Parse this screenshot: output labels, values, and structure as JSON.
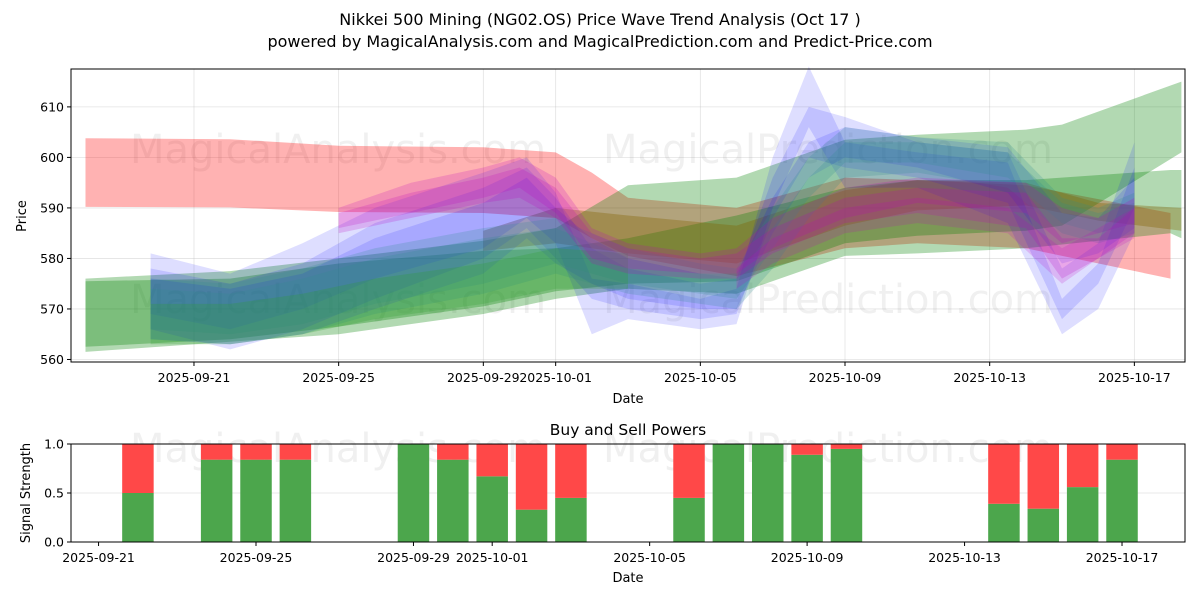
{
  "header": {
    "title": "Nikkei 500 Mining (NG02.OS) Price Wave Trend Analysis (Oct 17 )",
    "subtitle": "powered by MagicalAnalysis.com and MagicalPrediction.com and Predict-Price.com"
  },
  "watermarks": [
    "MagicalAnalysis.com",
    "MagicalPrediction.com"
  ],
  "chart_data": [
    {
      "type": "area",
      "title": "",
      "xlabel": "Date",
      "ylabel": "Price",
      "x_start": "2025-09-21",
      "x_unit": "days offset from 2025-09-21",
      "xlim": [
        -3.4,
        27.4
      ],
      "ylim": [
        559.5,
        617.5
      ],
      "xticks": [
        {
          "offset": 0,
          "label": "2025-09-21"
        },
        {
          "offset": 4,
          "label": "2025-09-25"
        },
        {
          "offset": 8,
          "label": "2025-09-29"
        },
        {
          "offset": 10,
          "label": "2025-10-01"
        },
        {
          "offset": 14,
          "label": "2025-10-05"
        },
        {
          "offset": 18,
          "label": "2025-10-09"
        },
        {
          "offset": 22,
          "label": "2025-10-13"
        },
        {
          "offset": 26,
          "label": "2025-10-17"
        }
      ],
      "yticks": [
        560,
        570,
        580,
        590,
        600,
        610
      ],
      "grid": true,
      "bands": [
        {
          "name": "red-wave-main",
          "color": "#ff0000",
          "opacity": 0.3,
          "x": [
            -3,
            1,
            4,
            8,
            10,
            11,
            12,
            15,
            18,
            20,
            23,
            27
          ],
          "upper": [
            603.8,
            603.6,
            602.3,
            602,
            601,
            597,
            592,
            590,
            596,
            595.5,
            594.5,
            589
          ],
          "lower": [
            590.2,
            590.1,
            589.2,
            589,
            588,
            584,
            580.5,
            576.5,
            582,
            583,
            582,
            576
          ]
        },
        {
          "name": "green-wave-upper",
          "color": "#008000",
          "opacity": 0.3,
          "x": [
            -3,
            1,
            4,
            8,
            10,
            12,
            15,
            18,
            20,
            23,
            24,
            27.3
          ],
          "upper": [
            576,
            577.5,
            580,
            583.5,
            586,
            594.5,
            596,
            603.5,
            604.5,
            605.5,
            606.5,
            615
          ],
          "lower": [
            562.5,
            564,
            566.5,
            570.5,
            573.5,
            575,
            575.5,
            583,
            584.5,
            585.5,
            586.5,
            601
          ]
        },
        {
          "name": "green-wave-lower",
          "color": "#008000",
          "opacity": 0.3,
          "x": [
            -3,
            1,
            4,
            8,
            10,
            12,
            15,
            18,
            20,
            23,
            27,
            27.3
          ],
          "upper": [
            575.5,
            576,
            579,
            581.5,
            582,
            584,
            588.5,
            594,
            595.5,
            595.5,
            597.5,
            597.5
          ],
          "lower": [
            561.5,
            563.5,
            565,
            569,
            572,
            574,
            573,
            580.5,
            581,
            582,
            585,
            584
          ]
        },
        {
          "name": "brown-wave",
          "color": "#806000",
          "opacity": 0.35,
          "x": [
            8,
            10,
            12,
            15,
            18,
            20,
            23,
            25,
            27.3
          ],
          "upper": [
            585.5,
            590,
            588.5,
            586.5,
            593.5,
            595.5,
            595,
            591,
            590
          ],
          "lower": [
            581.5,
            583,
            581,
            579,
            586.5,
            589.5,
            590.5,
            587.5,
            585.5
          ]
        },
        {
          "name": "blue-wave-1",
          "color": "#0000ff",
          "opacity": 0.13,
          "x": [
            -1.2,
            1,
            3,
            5,
            8,
            9.2,
            10,
            11,
            12,
            14,
            15,
            16,
            17,
            18,
            20,
            22.5,
            24,
            25,
            26
          ],
          "upper": [
            581,
            577,
            583,
            590,
            597,
            600,
            593,
            576,
            575,
            572,
            574,
            600,
            618,
            603,
            601,
            599,
            572,
            579,
            598
          ],
          "lower": [
            569,
            566,
            570,
            576,
            582,
            588,
            583,
            565,
            568,
            566,
            567,
            590,
            606,
            594,
            594,
            587,
            565,
            570,
            585
          ]
        },
        {
          "name": "blue-wave-2",
          "color": "#0000ff",
          "opacity": 0.13,
          "x": [
            -1.2,
            1,
            3,
            5,
            8,
            9.2,
            10,
            11,
            12,
            14,
            15,
            16,
            17,
            18,
            20,
            22.5,
            24,
            25,
            26
          ],
          "upper": [
            578,
            575,
            579,
            587,
            594,
            598,
            592,
            582,
            578,
            575,
            576,
            596,
            610,
            608,
            603,
            601,
            578,
            583,
            603
          ],
          "lower": [
            566,
            562,
            566,
            572,
            580,
            586,
            580,
            572,
            570,
            568,
            569,
            588,
            600,
            598,
            596,
            591,
            568,
            575,
            590
          ]
        },
        {
          "name": "blue-wave-3",
          "color": "#0000ff",
          "opacity": 0.13,
          "x": [
            -1.2,
            1,
            3,
            5,
            8,
            9.2,
            10,
            11,
            12,
            14,
            15,
            16,
            17,
            18,
            20,
            22.5,
            24,
            25,
            26
          ],
          "upper": [
            576,
            574,
            577,
            584,
            591,
            596,
            590,
            584,
            580,
            577,
            577,
            592,
            603,
            606,
            604,
            602,
            589,
            588,
            596
          ],
          "lower": [
            564,
            563,
            565,
            570,
            577,
            584,
            579,
            575,
            572,
            570,
            570,
            585,
            596,
            600,
            598,
            593,
            579,
            581,
            586
          ]
        },
        {
          "name": "teal-wave-1",
          "color": "#2e8b8b",
          "opacity": 0.22,
          "x": [
            -1.2,
            1,
            3,
            5,
            8,
            10,
            12,
            14,
            15,
            16,
            17,
            18,
            20,
            22.5,
            24,
            25,
            26
          ],
          "upper": [
            576,
            575,
            578,
            582,
            586,
            588,
            582,
            579,
            578,
            590,
            600,
            606,
            604,
            603,
            592,
            590,
            593
          ],
          "lower": [
            566,
            565,
            567,
            571,
            575,
            579,
            575,
            573,
            572,
            582,
            592,
            599,
            599,
            596,
            587,
            585,
            587
          ]
        },
        {
          "name": "teal-wave-2",
          "color": "#2e8b8b",
          "opacity": 0.22,
          "x": [
            -1.2,
            1,
            3,
            5,
            8,
            10,
            12,
            14,
            15,
            16,
            17,
            18,
            20,
            22.5,
            24,
            25,
            26
          ],
          "upper": [
            574,
            573,
            576,
            580,
            584,
            586,
            580,
            577,
            576,
            586,
            596,
            603,
            603,
            601,
            591,
            589,
            591
          ],
          "lower": [
            564,
            563,
            565,
            569,
            573,
            577,
            573,
            571,
            570,
            578,
            588,
            596,
            597,
            594,
            585,
            583,
            585
          ]
        },
        {
          "name": "green-inner-1",
          "color": "#2ca02c",
          "opacity": 0.25,
          "x": [
            -1.2,
            1,
            3,
            5,
            8,
            10,
            12
          ],
          "upper": [
            571,
            571,
            573,
            576,
            579,
            582,
            581
          ],
          "lower": [
            563,
            563,
            565,
            568,
            571,
            574,
            574
          ]
        },
        {
          "name": "magenta-wave-1",
          "color": "#c000c0",
          "opacity": 0.2,
          "x": [
            4,
            6,
            8,
            9,
            10,
            11,
            12,
            14,
            15,
            16,
            18,
            20,
            23,
            24,
            25,
            26
          ],
          "upper": [
            590,
            595,
            598,
            600,
            596,
            586,
            583,
            581,
            582,
            588,
            594,
            596,
            595,
            590,
            588,
            592
          ],
          "lower": [
            586,
            589,
            592,
            594,
            589,
            580,
            578,
            577,
            577,
            582,
            588,
            591,
            589,
            583,
            585,
            587
          ]
        },
        {
          "name": "magenta-wave-2",
          "color": "#c000c0",
          "opacity": 0.2,
          "x": [
            4,
            6,
            8,
            9,
            10,
            11,
            12,
            14,
            15,
            16,
            18,
            20,
            23,
            24,
            25,
            26
          ],
          "upper": [
            589,
            593,
            596,
            598,
            594,
            585,
            582,
            580,
            581,
            586,
            592,
            594,
            593,
            584,
            584,
            590
          ],
          "lower": [
            585,
            588,
            591,
            592,
            588,
            579,
            577,
            576,
            576,
            581,
            587,
            589,
            586,
            576,
            580,
            585
          ]
        },
        {
          "name": "magenta-wave-3",
          "color": "#c000c0",
          "opacity": 0.18,
          "x": [
            15,
            16,
            18,
            20,
            22.5,
            24,
            25,
            26
          ],
          "upper": [
            578,
            584,
            590,
            592,
            590,
            582,
            586,
            590
          ],
          "lower": [
            574,
            579,
            585,
            587,
            585,
            575,
            580,
            584
          ]
        }
      ]
    },
    {
      "type": "bar",
      "title": "Buy and Sell Powers",
      "xlabel": "Date",
      "ylabel": "Signal Strength",
      "x_start": "2025-09-21",
      "x_unit": "days offset from 2025-09-21",
      "xlim": [
        -0.7,
        27.6
      ],
      "ylim": [
        0,
        1
      ],
      "xticks": [
        {
          "offset": 0,
          "label": "2025-09-21"
        },
        {
          "offset": 4,
          "label": "2025-09-25"
        },
        {
          "offset": 8,
          "label": "2025-09-29"
        },
        {
          "offset": 10,
          "label": "2025-10-01"
        },
        {
          "offset": 14,
          "label": "2025-10-05"
        },
        {
          "offset": 18,
          "label": "2025-10-09"
        },
        {
          "offset": 22,
          "label": "2025-10-13"
        },
        {
          "offset": 26,
          "label": "2025-10-17"
        }
      ],
      "yticks": [
        {
          "value": 0,
          "label": "0.0"
        },
        {
          "value": 0.5,
          "label": "0.5"
        },
        {
          "value": 1,
          "label": "1.0"
        }
      ],
      "grid": true,
      "categories": [
        "2025-09-22",
        "2025-09-24",
        "2025-09-25",
        "2025-09-26",
        "2025-09-29",
        "2025-09-30",
        "2025-10-01",
        "2025-10-02",
        "2025-10-03",
        "2025-10-06",
        "2025-10-07",
        "2025-10-08",
        "2025-10-09",
        "2025-10-10",
        "2025-10-14",
        "2025-10-15",
        "2025-10-16",
        "2025-10-17"
      ],
      "offsets": [
        1,
        3,
        4,
        5,
        8,
        9,
        10,
        11,
        12,
        15,
        16,
        17,
        18,
        19,
        23,
        24,
        25,
        26
      ],
      "series": [
        {
          "name": "Buy",
          "color": "#4ca64c",
          "values": [
            0.5,
            0.84,
            0.84,
            0.84,
            1.0,
            0.84,
            0.67,
            0.33,
            0.45,
            0.45,
            1.0,
            1.0,
            0.89,
            0.95,
            0.39,
            0.34,
            0.56,
            0.84
          ]
        },
        {
          "name": "Sell",
          "color": "#ff4848",
          "values": [
            0.5,
            0.16,
            0.16,
            0.16,
            0.0,
            0.16,
            0.33,
            0.67,
            0.55,
            0.55,
            0.0,
            0.0,
            0.11,
            0.05,
            0.61,
            0.66,
            0.44,
            0.16
          ]
        }
      ]
    }
  ]
}
